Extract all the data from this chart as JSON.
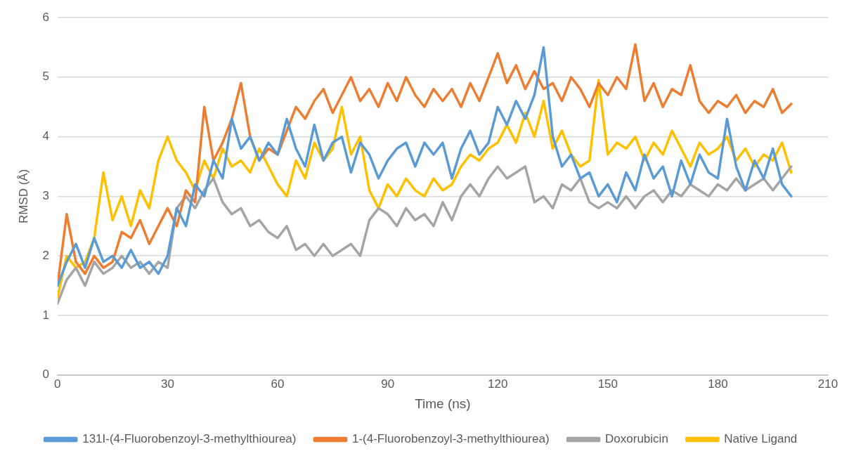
{
  "chart_data": {
    "type": "line",
    "xlabel": "Time (ns)",
    "ylabel": "RMSD (Å)",
    "xlim": [
      0,
      210
    ],
    "xticks": [
      0,
      30,
      60,
      90,
      120,
      150,
      180,
      210
    ],
    "ylim": [
      0,
      6
    ],
    "yticks": [
      0,
      1,
      2,
      3,
      4,
      5,
      6
    ],
    "grid": "y",
    "legend": "bottom",
    "marker": "none",
    "line_style": "solid",
    "x": [
      0,
      2.5,
      5,
      7.5,
      10,
      12.5,
      15,
      17.5,
      20,
      22.5,
      25,
      27.5,
      30,
      32.5,
      35,
      37.5,
      40,
      42.5,
      45,
      47.5,
      50,
      52.5,
      55,
      57.5,
      60,
      62.5,
      65,
      67.5,
      70,
      72.5,
      75,
      77.5,
      80,
      82.5,
      85,
      87.5,
      90,
      92.5,
      95,
      97.5,
      100,
      102.5,
      105,
      107.5,
      110,
      112.5,
      115,
      117.5,
      120,
      122.5,
      125,
      127.5,
      130,
      132.5,
      135,
      137.5,
      140,
      142.5,
      145,
      147.5,
      150,
      152.5,
      155,
      157.5,
      160,
      162.5,
      165,
      167.5,
      170,
      172.5,
      175,
      177.5,
      180,
      182.5,
      185,
      187.5,
      190,
      192.5,
      195,
      197.5,
      200
    ],
    "series": [
      {
        "name": "131I-(4-Fluorobenzoyl-3-methylthiourea)",
        "color": "#5b9bd5",
        "values": [
          1.5,
          1.9,
          2.2,
          1.8,
          2.3,
          1.9,
          2.0,
          1.8,
          2.1,
          1.8,
          1.9,
          1.7,
          2.0,
          2.8,
          2.5,
          3.2,
          3.0,
          3.6,
          3.3,
          4.3,
          3.8,
          4.0,
          3.6,
          3.9,
          3.7,
          4.3,
          3.8,
          3.5,
          4.2,
          3.6,
          3.9,
          4.0,
          3.4,
          3.9,
          3.7,
          3.3,
          3.6,
          3.8,
          3.9,
          3.5,
          3.9,
          3.7,
          3.9,
          3.3,
          3.8,
          4.1,
          3.7,
          3.9,
          4.5,
          4.2,
          4.6,
          4.3,
          4.7,
          5.5,
          4.0,
          3.5,
          3.7,
          3.3,
          3.4,
          3.0,
          3.2,
          2.9,
          3.4,
          3.1,
          3.7,
          3.3,
          3.5,
          3.0,
          3.6,
          3.2,
          3.7,
          3.4,
          3.3,
          4.3,
          3.5,
          3.1,
          3.6,
          3.3,
          3.8,
          3.2,
          3.0
        ]
      },
      {
        "name": "1-(4-Fluorobenzoyl-3-methylthiourea)",
        "color": "#ed7d31",
        "values": [
          1.5,
          2.7,
          1.9,
          1.7,
          2.0,
          1.8,
          1.9,
          2.4,
          2.3,
          2.6,
          2.2,
          2.5,
          2.8,
          2.5,
          3.1,
          2.9,
          4.5,
          3.6,
          3.9,
          4.3,
          4.9,
          4.0,
          3.6,
          3.8,
          3.7,
          4.1,
          4.5,
          4.3,
          4.6,
          4.8,
          4.4,
          4.7,
          5.0,
          4.6,
          4.8,
          4.5,
          4.9,
          4.6,
          5.0,
          4.7,
          4.5,
          4.8,
          4.6,
          4.8,
          4.5,
          4.9,
          4.6,
          5.0,
          5.4,
          4.9,
          5.2,
          4.8,
          5.1,
          4.8,
          4.9,
          4.6,
          5.0,
          4.8,
          4.5,
          4.9,
          4.7,
          5.0,
          4.8,
          5.55,
          4.6,
          4.9,
          4.5,
          4.8,
          4.7,
          5.2,
          4.6,
          4.4,
          4.6,
          4.5,
          4.7,
          4.4,
          4.6,
          4.5,
          4.8,
          4.4,
          4.55
        ]
      },
      {
        "name": "Doxorubicin",
        "color": "#a5a5a5",
        "values": [
          1.2,
          1.6,
          1.8,
          1.5,
          1.9,
          1.7,
          1.8,
          2.0,
          1.8,
          1.9,
          1.7,
          1.9,
          1.8,
          2.8,
          3.0,
          2.8,
          3.1,
          3.3,
          2.9,
          2.7,
          2.8,
          2.5,
          2.6,
          2.4,
          2.3,
          2.5,
          2.1,
          2.2,
          2.0,
          2.2,
          2.0,
          2.1,
          2.2,
          2.0,
          2.6,
          2.8,
          2.7,
          2.5,
          2.8,
          2.6,
          2.7,
          2.5,
          2.9,
          2.6,
          3.0,
          3.2,
          3.0,
          3.3,
          3.5,
          3.3,
          3.4,
          3.5,
          2.9,
          3.0,
          2.8,
          3.2,
          3.1,
          3.3,
          2.9,
          2.8,
          2.9,
          2.8,
          3.0,
          2.8,
          3.0,
          3.1,
          2.9,
          3.1,
          3.0,
          3.2,
          3.1,
          3.0,
          3.2,
          3.1,
          3.3,
          3.1,
          3.2,
          3.3,
          3.1,
          3.3,
          3.5
        ]
      },
      {
        "name": "Native Ligand",
        "color": "#ffc000",
        "values": [
          1.3,
          2.0,
          1.8,
          1.9,
          2.3,
          3.4,
          2.6,
          3.0,
          2.5,
          3.1,
          2.8,
          3.6,
          4.0,
          3.6,
          3.4,
          3.1,
          3.6,
          3.3,
          3.8,
          3.5,
          3.6,
          3.4,
          3.8,
          3.5,
          3.2,
          3.0,
          3.6,
          3.3,
          3.9,
          3.6,
          3.8,
          4.5,
          3.7,
          4.0,
          3.1,
          2.8,
          3.2,
          3.0,
          3.3,
          3.1,
          3.0,
          3.3,
          3.1,
          3.2,
          3.5,
          3.7,
          3.6,
          3.8,
          3.9,
          4.2,
          3.9,
          4.4,
          4.0,
          4.6,
          3.8,
          4.1,
          3.7,
          3.5,
          3.6,
          4.95,
          3.7,
          3.9,
          3.8,
          4.0,
          3.6,
          3.9,
          3.7,
          4.1,
          3.8,
          3.5,
          3.9,
          3.7,
          3.8,
          4.0,
          3.6,
          3.8,
          3.5,
          3.7,
          3.6,
          3.9,
          3.4
        ]
      }
    ]
  }
}
